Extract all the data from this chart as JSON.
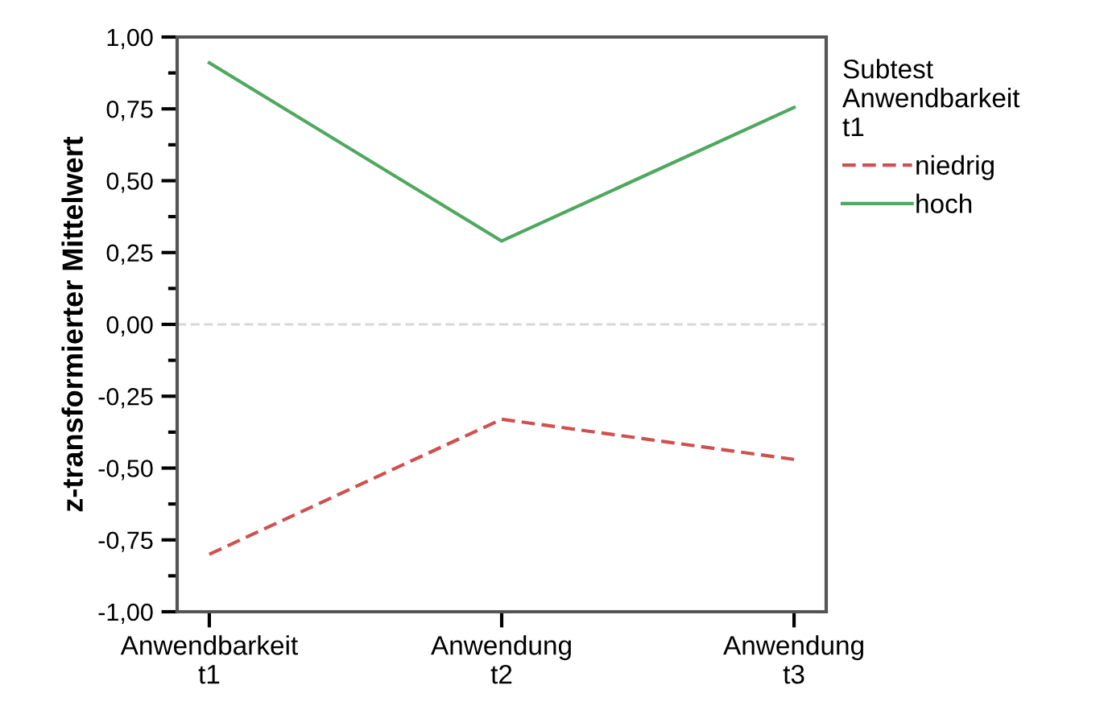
{
  "chart_data": {
    "type": "line",
    "categories": [
      "Anwendbarkeit\nt1",
      "Anwendung\nt2",
      "Anwendung\nt3"
    ],
    "ylabel": "z-transformierter Mittelwert",
    "legend_title": "Subtest\nAnwendbarkeit\nt1",
    "series": [
      {
        "name": "niedrig",
        "color": "#d05050",
        "line_style": "dashed",
        "values": [
          -0.8,
          -0.33,
          -0.47
        ]
      },
      {
        "name": "hoch",
        "color": "#50a860",
        "line_style": "solid",
        "values": [
          0.91,
          0.29,
          0.755
        ]
      }
    ],
    "ylim": [
      -1.0,
      1.0
    ],
    "yticks": [
      {
        "value": -1.0,
        "label": "-1,00"
      },
      {
        "value": -0.75,
        "label": "-0,75"
      },
      {
        "value": -0.5,
        "label": "-0,50"
      },
      {
        "value": -0.25,
        "label": "-0,25"
      },
      {
        "value": 0.0,
        "label": "0,00"
      },
      {
        "value": 0.25,
        "label": "0,25"
      },
      {
        "value": 0.5,
        "label": "0,50"
      },
      {
        "value": 0.75,
        "label": "0,75"
      },
      {
        "value": 1.0,
        "label": "1,00"
      }
    ],
    "ref_lines": [
      {
        "axis": "y",
        "value": 0.0,
        "color": "#d8d8d8",
        "line_style": "dashed"
      }
    ],
    "legend": "right",
    "grid": false,
    "marker": "none"
  }
}
